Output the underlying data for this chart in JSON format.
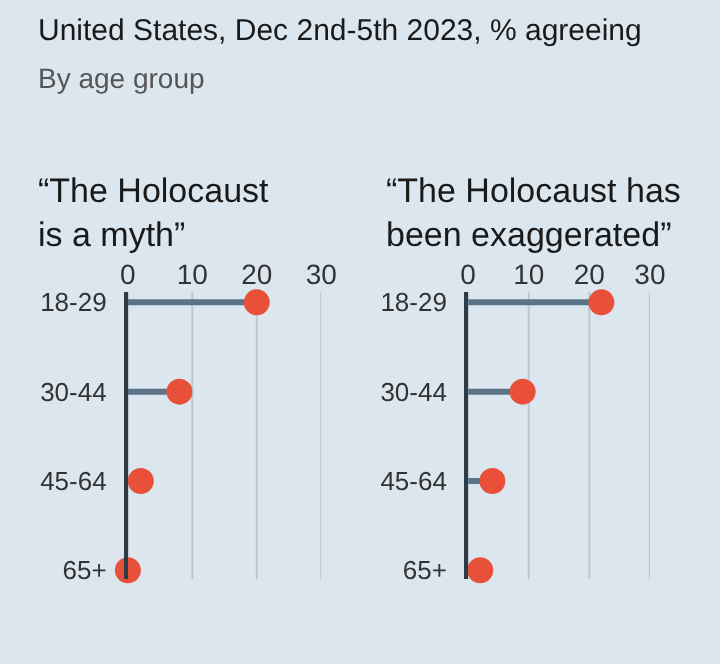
{
  "chart_data": [
    {
      "type": "lollipop",
      "orientation": "horizontal",
      "title": "“The Holocaust\nis a myth”",
      "annotations": [
        "United States, Dec 2nd-5th 2023, % agreeing",
        "By age group"
      ],
      "categories": [
        "18-29",
        "30-44",
        "45-64",
        "65+"
      ],
      "values": [
        20,
        8,
        2,
        0
      ],
      "color": "#e8503a",
      "xlim": [
        0,
        30
      ],
      "xticks": [
        0,
        10,
        20,
        30
      ],
      "grid": "x",
      "marker": "circle"
    },
    {
      "type": "lollipop",
      "orientation": "horizontal",
      "title": "“The Holocaust has\nbeen exaggerated”",
      "categories": [
        "18-29",
        "30-44",
        "45-64",
        "65+"
      ],
      "values": [
        22,
        9,
        4,
        2
      ],
      "color": "#e8503a",
      "xlim": [
        0,
        30
      ],
      "xticks": [
        0,
        10,
        20,
        30
      ],
      "grid": "x",
      "marker": "circle"
    }
  ]
}
